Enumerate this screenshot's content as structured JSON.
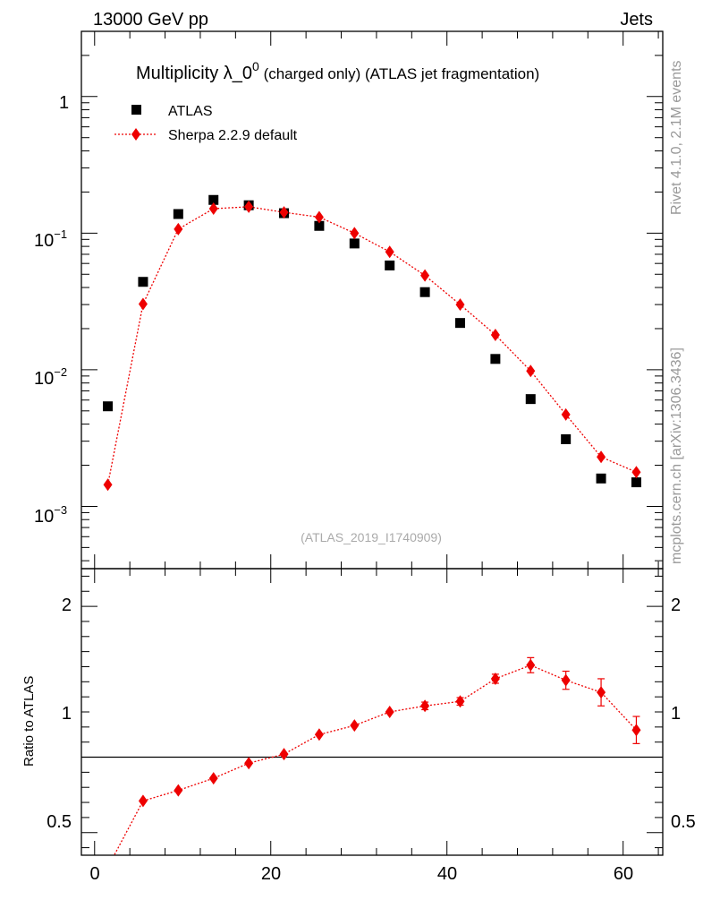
{
  "header": {
    "left": "13000 GeV pp",
    "right": "Jets"
  },
  "side_labels": {
    "top": "Rivet 4.1.0,  2.1M events",
    "bottom": "mcplots.cern.ch [arXiv:1306.3436]"
  },
  "chart_data": {
    "type": "scatter",
    "title": {
      "main": "Multiplicity λ_0",
      "sup": "0",
      "rest": " (charged only) (ATLAS jet fragmentation)"
    },
    "analysis_id": "(ATLAS_2019_I1740909)",
    "x": [
      1.5,
      5.5,
      9.5,
      13.5,
      17.5,
      21.5,
      25.5,
      29.5,
      33.5,
      37.5,
      41.5,
      45.5,
      49.5,
      53.5,
      57.5,
      61.5
    ],
    "xlim": [
      -1.5,
      64.5
    ],
    "xticks": [
      "0",
      "20",
      "40",
      "60"
    ],
    "ylim": [
      0.00035,
      3.0
    ],
    "ylog": true,
    "yticks": {
      "t0": "10",
      "e0": "−3",
      "t1": "10",
      "e1": "−2",
      "t2": "10",
      "e2": "−1",
      "t3": "1",
      "e3": ""
    },
    "series": [
      {
        "name": "ATLAS",
        "color": "#000000",
        "marker": "square",
        "values": [
          0.0054,
          0.044,
          0.138,
          0.175,
          0.16,
          0.14,
          0.113,
          0.084,
          0.058,
          0.037,
          0.022,
          0.012,
          0.0061,
          0.0031,
          0.0016,
          0.0015
        ]
      },
      {
        "name": "Sherpa 2.2.9 default",
        "color": "#ee0000",
        "marker": "diamond",
        "values": [
          0.00144,
          0.0303,
          0.107,
          0.151,
          0.156,
          0.142,
          0.131,
          0.1,
          0.073,
          0.049,
          0.03,
          0.018,
          0.0098,
          0.0047,
          0.0023,
          0.00178
        ]
      }
    ],
    "ratio": {
      "ylabel": "Ratio to ATLAS",
      "ylim": [
        0.35,
        2.25
      ],
      "yticks": [
        "0.5",
        "1",
        "2"
      ],
      "values": [
        0.27,
        0.71,
        0.78,
        0.86,
        0.96,
        1.02,
        1.15,
        1.21,
        1.3,
        1.34,
        1.37,
        1.52,
        1.61,
        1.51,
        1.43,
        1.18
      ],
      "errors": [
        0.01,
        0.015,
        0.015,
        0.015,
        0.015,
        0.015,
        0.02,
        0.02,
        0.02,
        0.025,
        0.025,
        0.03,
        0.05,
        0.06,
        0.09,
        0.09
      ]
    }
  }
}
